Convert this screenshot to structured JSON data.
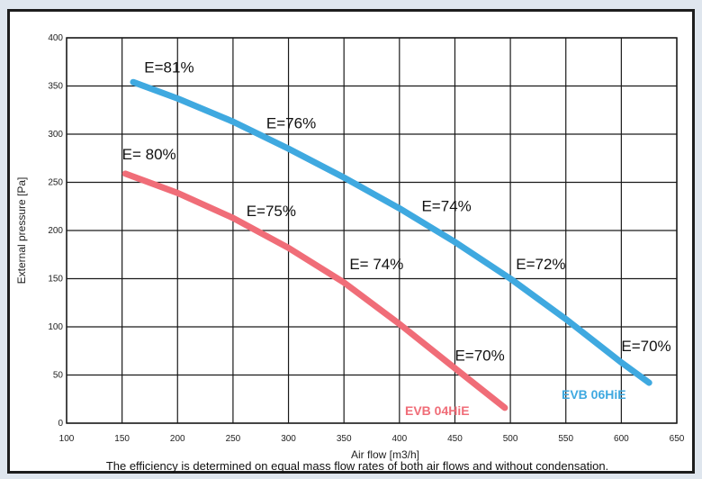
{
  "chart_data": {
    "type": "line",
    "xlabel": "Air flow [m3/h]",
    "ylabel": "External pressure [Pa]",
    "xlim": [
      100,
      650
    ],
    "ylim": [
      0,
      400
    ],
    "x_ticks": [
      100,
      150,
      200,
      250,
      300,
      350,
      400,
      450,
      500,
      550,
      600,
      650
    ],
    "y_ticks": [
      0,
      50,
      100,
      150,
      200,
      250,
      300,
      350,
      400
    ],
    "grid": true,
    "series": [
      {
        "name": "EVB 06HiE",
        "color": "#3fa9e0",
        "x": [
          160,
          200,
          250,
          300,
          350,
          400,
          450,
          500,
          550,
          600,
          625
        ],
        "y": [
          354,
          337,
          313,
          285,
          255,
          223,
          188,
          150,
          108,
          63,
          42
        ],
        "annotations": [
          {
            "text": "E=81%",
            "x": 170,
            "y": 364
          },
          {
            "text": "E=76%",
            "x": 280,
            "y": 306
          },
          {
            "text": "E=74%",
            "x": 420,
            "y": 220
          },
          {
            "text": "E=72%",
            "x": 505,
            "y": 160
          },
          {
            "text": "E=70%",
            "x": 600,
            "y": 75
          }
        ]
      },
      {
        "name": "EVB 04HiE",
        "color": "#f06d78",
        "x": [
          153,
          200,
          250,
          300,
          350,
          400,
          450,
          495
        ],
        "y": [
          259,
          239,
          213,
          182,
          146,
          103,
          57,
          16
        ],
        "annotations": [
          {
            "text": "E= 80%",
            "x": 150,
            "y": 274
          },
          {
            "text": "E=75%",
            "x": 262,
            "y": 215
          },
          {
            "text": "E= 74%",
            "x": 355,
            "y": 160
          },
          {
            "text": "E=70%",
            "x": 450,
            "y": 65
          }
        ]
      }
    ],
    "footnote": "The efficiency is determined on equal mass flow rates of both air flows and without condensation."
  }
}
